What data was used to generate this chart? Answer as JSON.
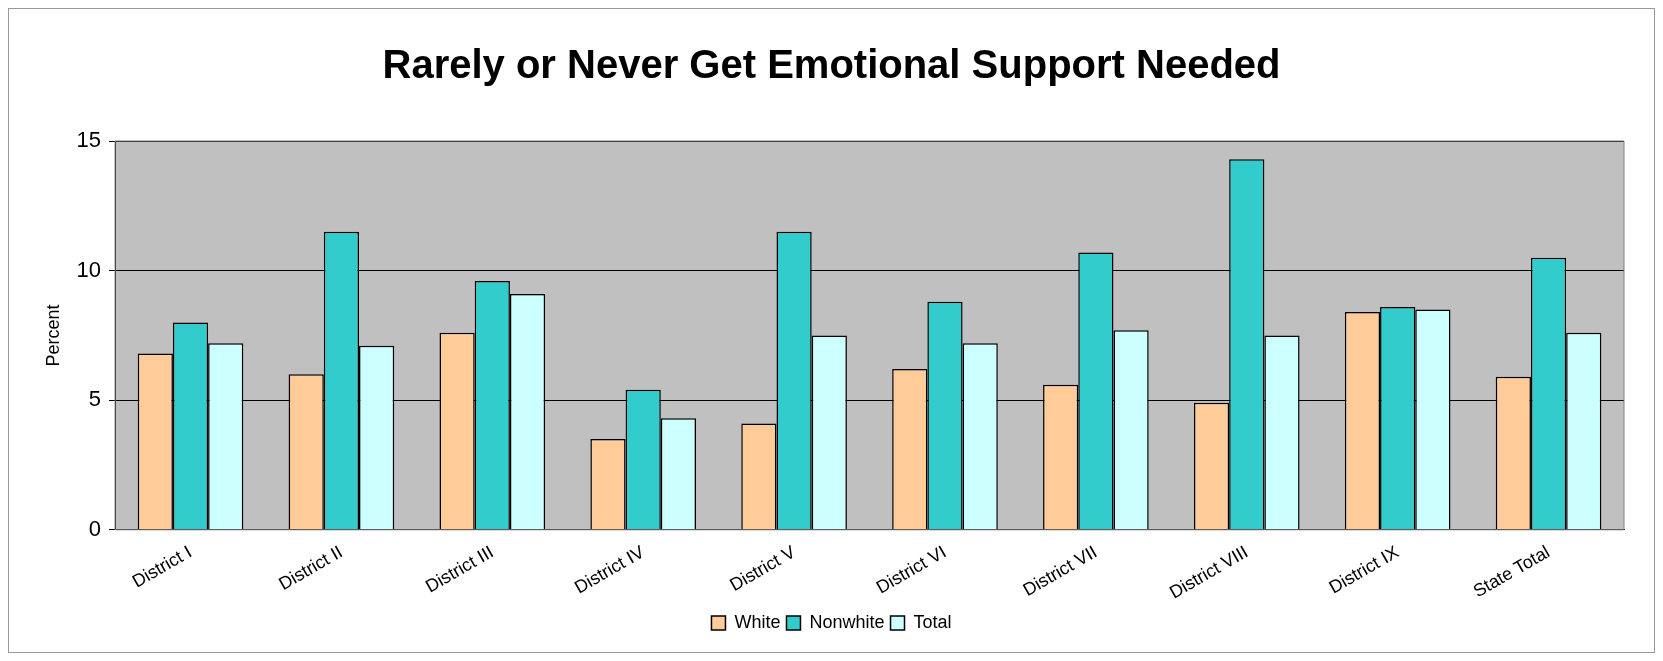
{
  "chart_data": {
    "type": "bar",
    "title": "Rarely or Never Get Emotional Support Needed",
    "ylabel": "Percent",
    "categories": [
      "District I",
      "District II",
      "District III",
      "District IV",
      "District V",
      "District VI",
      "District VII",
      "District VIII",
      "District IX",
      "State Total"
    ],
    "series": [
      {
        "name": "White",
        "color": "#ffcc99",
        "values": [
          6.8,
          6.0,
          7.6,
          3.5,
          4.1,
          6.2,
          5.6,
          4.9,
          8.4,
          5.9
        ]
      },
      {
        "name": "Nonwhite",
        "color": "#33cccc",
        "values": [
          8.0,
          11.5,
          9.6,
          5.4,
          11.5,
          8.8,
          10.7,
          14.3,
          8.6,
          10.5
        ]
      },
      {
        "name": "Total",
        "color": "#ccffff",
        "values": [
          7.2,
          7.1,
          9.1,
          4.3,
          7.5,
          7.2,
          7.7,
          7.5,
          8.5,
          7.6
        ]
      }
    ],
    "ylim": [
      0,
      15
    ],
    "yticks": [
      0,
      5,
      10,
      15
    ],
    "grid": "y",
    "legend": "bottom"
  }
}
